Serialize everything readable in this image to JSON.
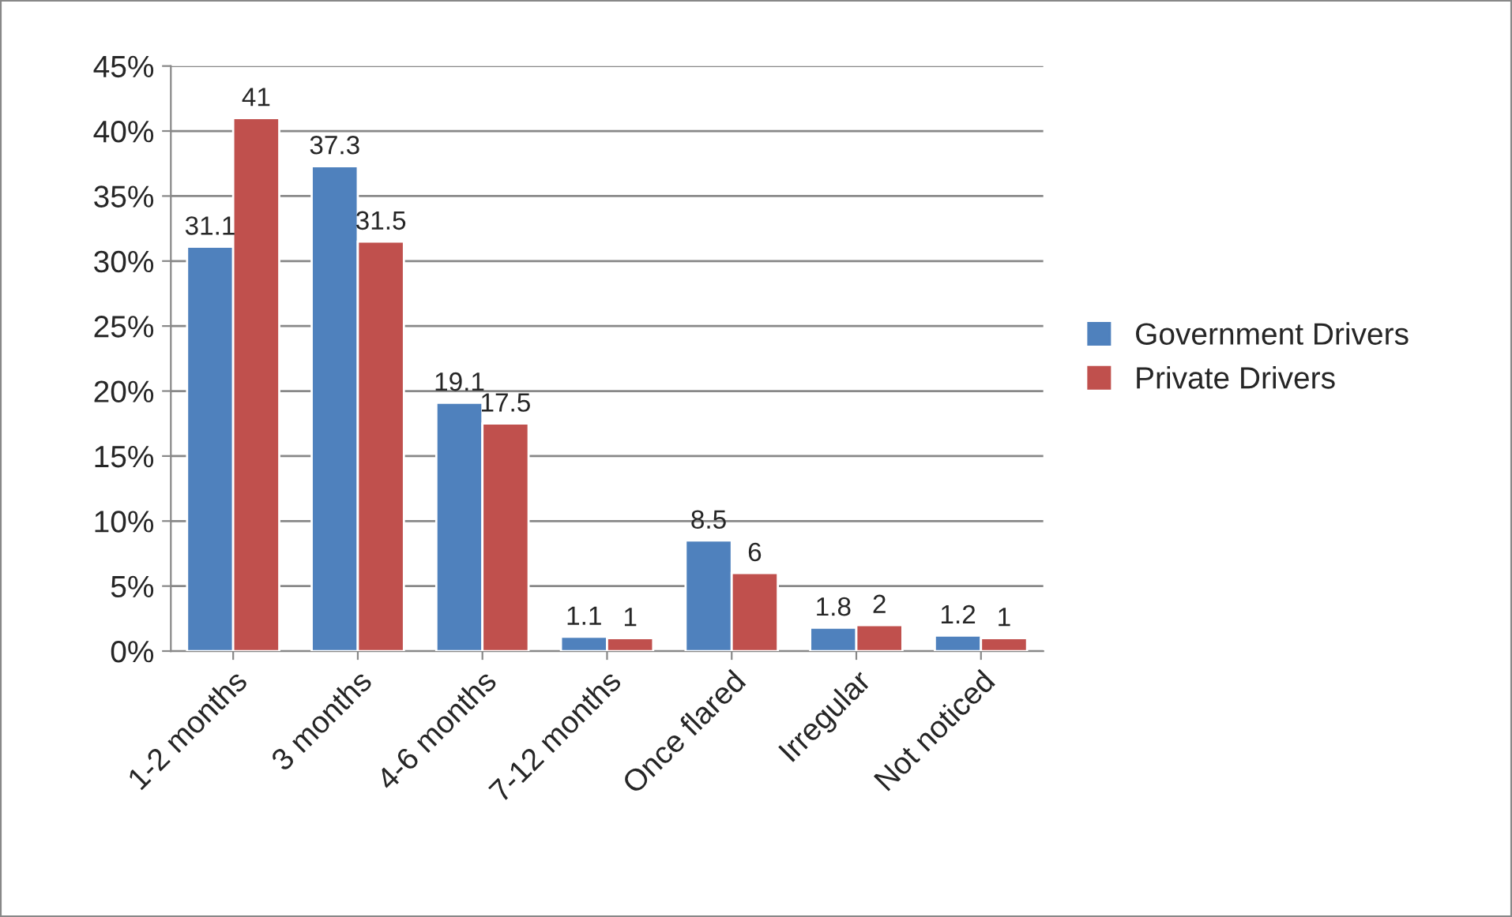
{
  "chart_data": {
    "type": "bar",
    "categories": [
      "1-2 months",
      "3 months",
      "4-6 months",
      "7-12 months",
      "Once flared",
      "Irregular",
      "Not noticed"
    ],
    "series": [
      {
        "name": "Government Drivers",
        "color": "#4f81bd",
        "values": [
          31.1,
          37.3,
          19.1,
          1.1,
          8.5,
          1.8,
          1.2
        ]
      },
      {
        "name": "Private Drivers",
        "color": "#c0504d",
        "values": [
          41,
          31.5,
          17.5,
          1,
          6,
          2,
          1
        ]
      }
    ],
    "ylim": [
      0,
      45
    ],
    "yticks": [
      {
        "value": 0,
        "label": "0%"
      },
      {
        "value": 5,
        "label": "5%"
      },
      {
        "value": 10,
        "label": "10%"
      },
      {
        "value": 15,
        "label": "15%"
      },
      {
        "value": 20,
        "label": "20%"
      },
      {
        "value": 25,
        "label": "25%"
      },
      {
        "value": 30,
        "label": "30%"
      },
      {
        "value": 35,
        "label": "35%"
      },
      {
        "value": 40,
        "label": "40%"
      },
      {
        "value": 45,
        "label": "45%"
      }
    ],
    "grid": "y",
    "legend": "right",
    "data_labels": true
  }
}
